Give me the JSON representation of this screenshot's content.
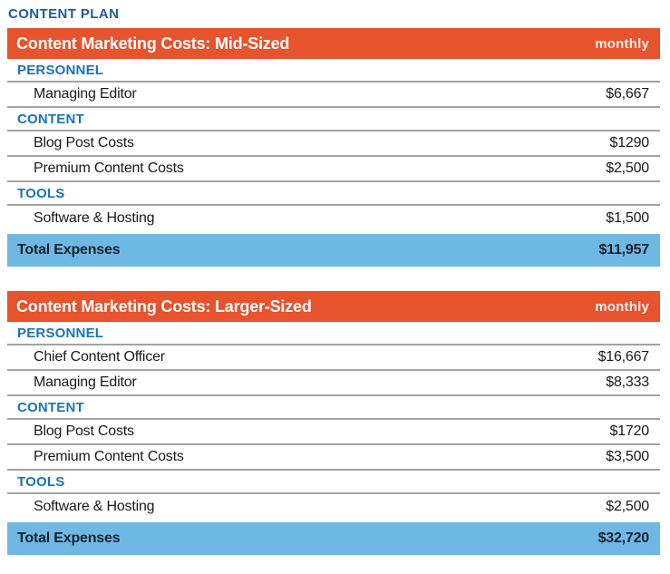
{
  "page_title": "CONTENT PLAN",
  "colors": {
    "header_orange": "#E6532D",
    "section_blue": "#1B73B7",
    "total_band_blue": "#70B8E4",
    "title_navy": "#1E5C9F",
    "row_rule_gray": "#A3A3A3"
  },
  "tables": [
    {
      "title_prefix": "Content Marketing Costs: ",
      "title_emphasis": "Mid-Sized",
      "period_label": "monthly",
      "sections": [
        {
          "name": "PERSONNEL",
          "items": [
            {
              "label": "Managing Editor",
              "value": "$6,667"
            }
          ]
        },
        {
          "name": "CONTENT",
          "items": [
            {
              "label": "Blog Post Costs",
              "value": "$1290"
            },
            {
              "label": "Premium Content Costs",
              "value": "$2,500"
            }
          ]
        },
        {
          "name": "TOOLS",
          "items": [
            {
              "label": "Software & Hosting",
              "value": "$1,500"
            }
          ]
        }
      ],
      "total": {
        "label": "Total Expenses",
        "value": "$11,957"
      }
    },
    {
      "title_prefix": "Content Marketing Costs: ",
      "title_emphasis": "Larger-Sized",
      "period_label": "monthly",
      "sections": [
        {
          "name": "PERSONNEL",
          "items": [
            {
              "label": "Chief Content Officer",
              "value": "$16,667"
            },
            {
              "label": "Managing Editor",
              "value": "$8,333"
            }
          ]
        },
        {
          "name": "CONTENT",
          "items": [
            {
              "label": "Blog Post Costs",
              "value": "$1720"
            },
            {
              "label": "Premium Content Costs",
              "value": "$3,500"
            }
          ]
        },
        {
          "name": "TOOLS",
          "items": [
            {
              "label": "Software & Hosting",
              "value": "$2,500"
            }
          ]
        }
      ],
      "total": {
        "label": "Total Expenses",
        "value": "$32,720"
      }
    }
  ]
}
